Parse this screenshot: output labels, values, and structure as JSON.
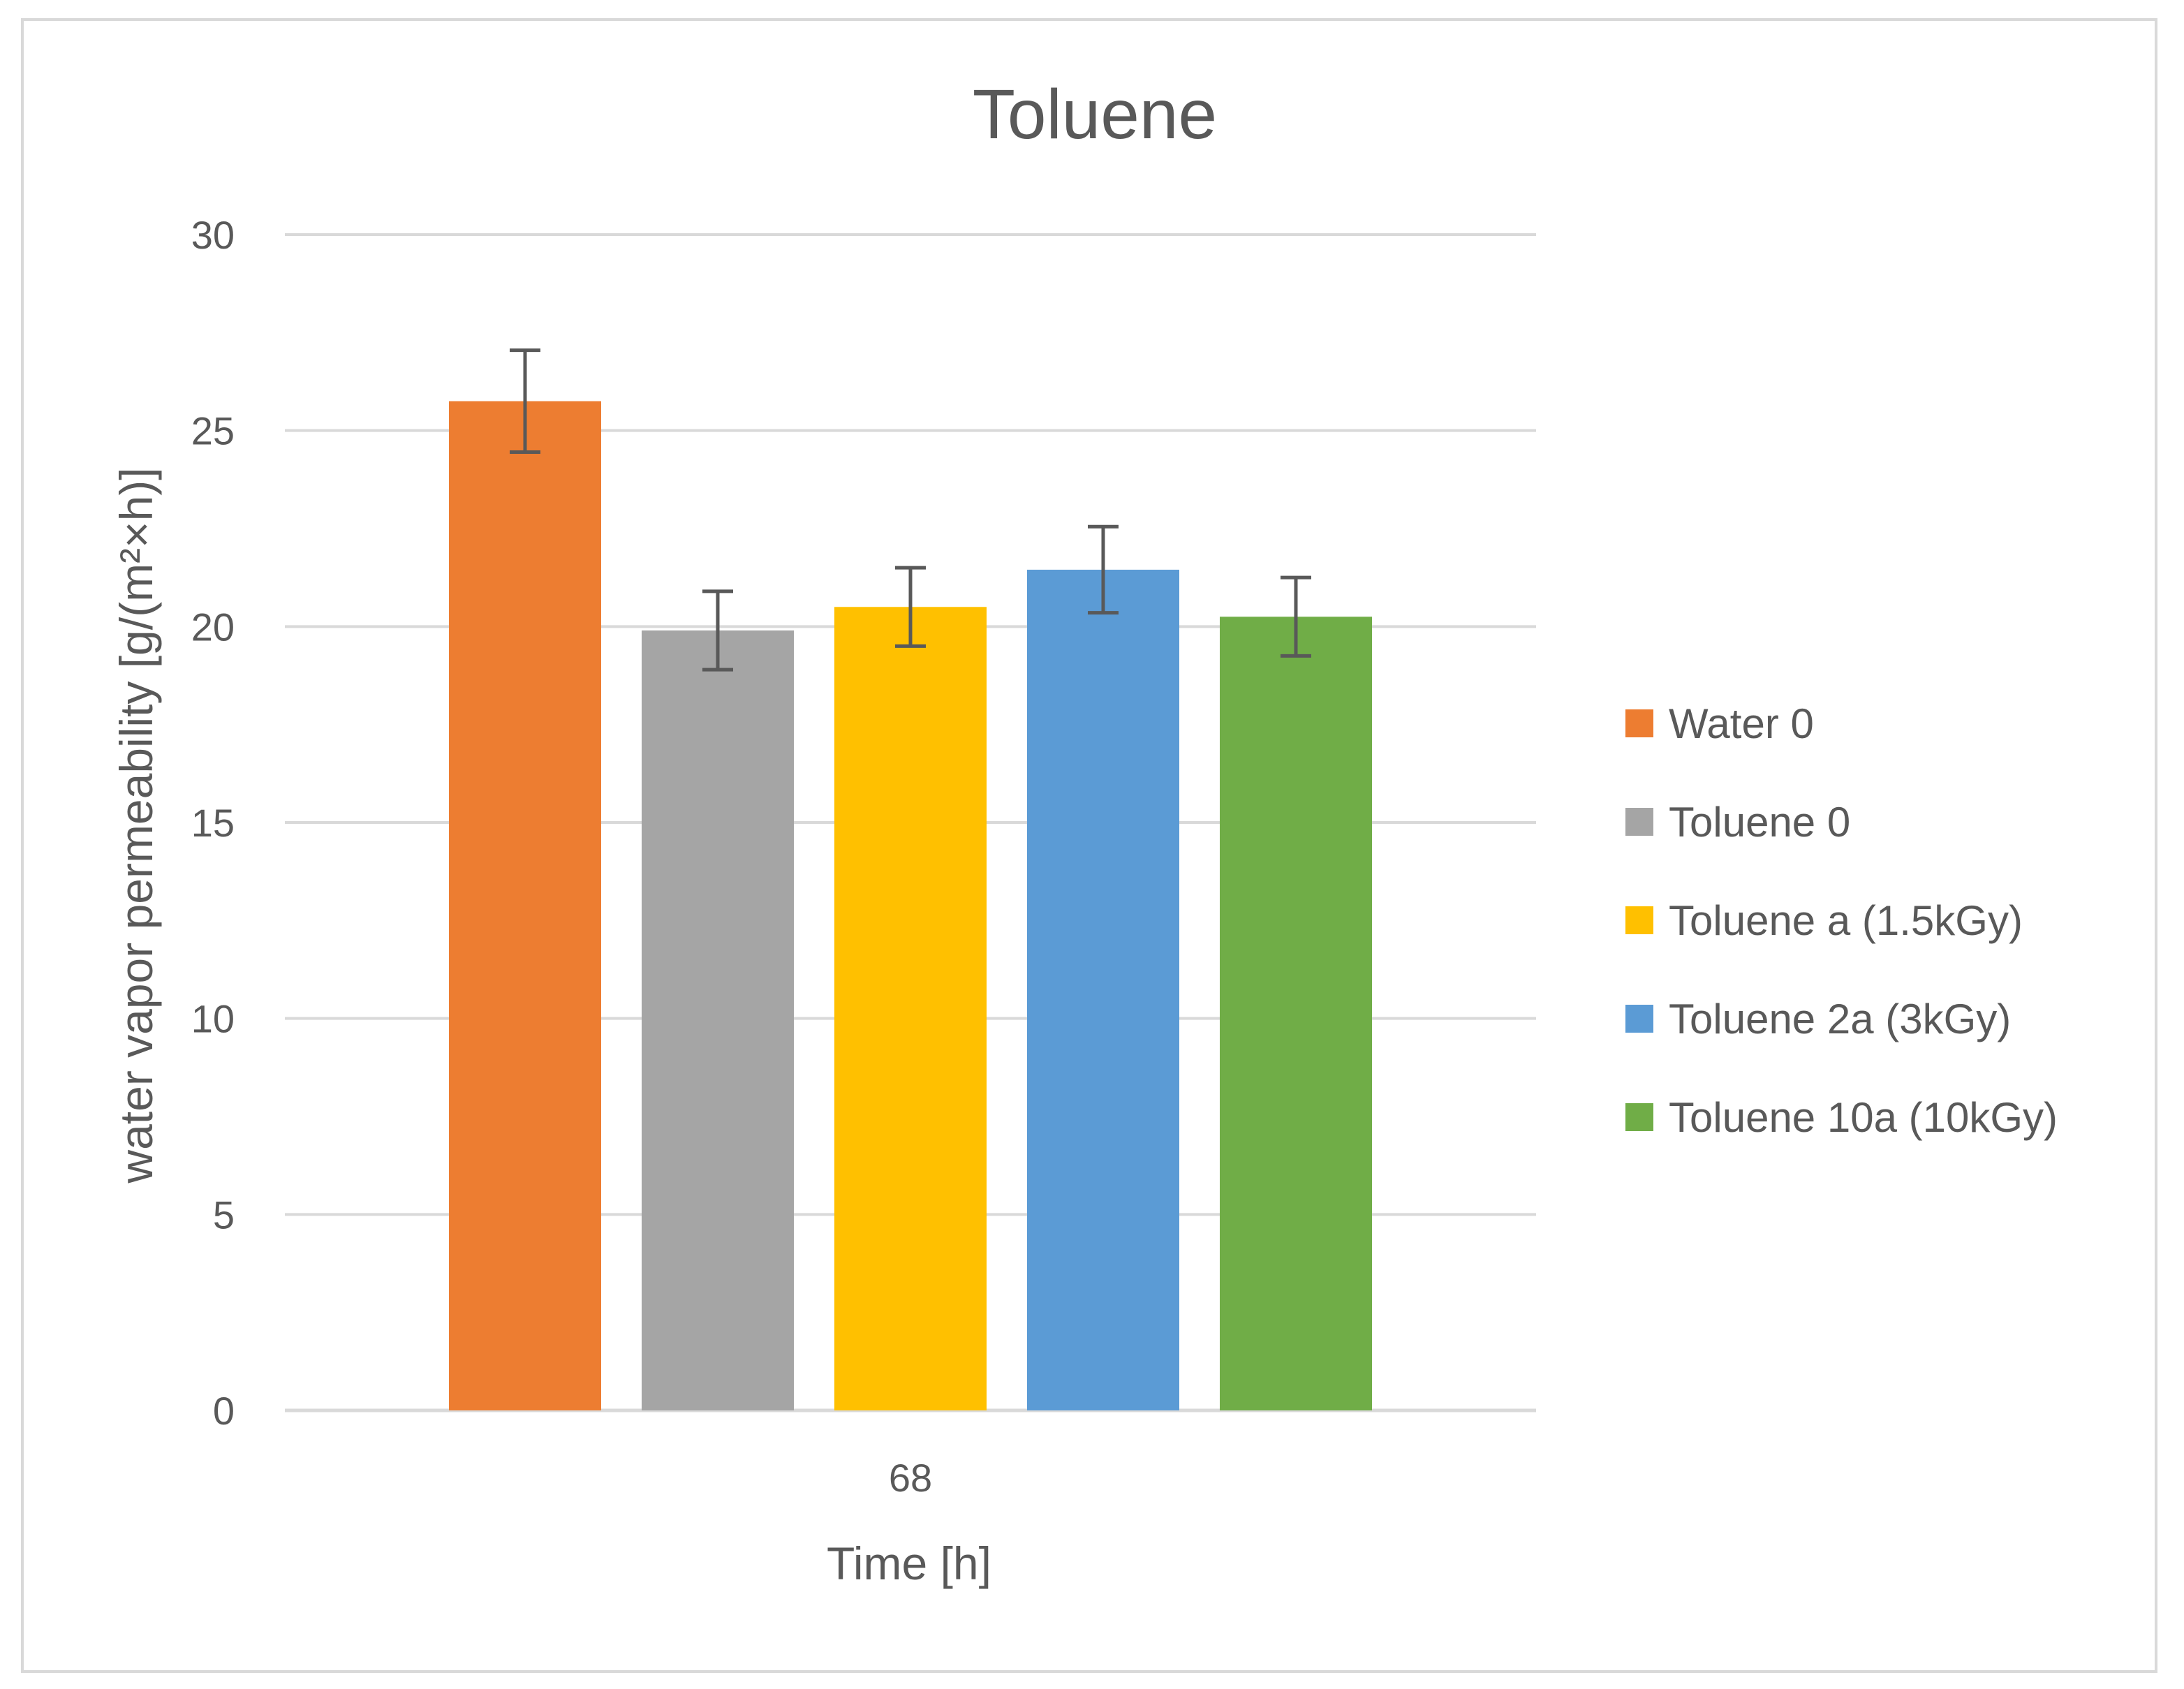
{
  "chart_data": {
    "type": "bar",
    "title": "Toluene",
    "xlabel": "Time [h]",
    "ylabel": "water vapor permeability [g/(m²×h)]",
    "categories": [
      "68"
    ],
    "ylim": [
      0,
      30
    ],
    "yticks": [
      0,
      5,
      10,
      15,
      20,
      25,
      30
    ],
    "grid": true,
    "legend_position": "right",
    "series": [
      {
        "name": "Water 0",
        "values": [
          25.75
        ],
        "error": [
          1.3
        ],
        "color": "#ED7D31"
      },
      {
        "name": "Toluene 0",
        "values": [
          19.9
        ],
        "error": [
          1.0
        ],
        "color": "#A5A5A5"
      },
      {
        "name": "Toluene a (1.5kGy)",
        "values": [
          20.5
        ],
        "error": [
          1.0
        ],
        "color": "#FFC000"
      },
      {
        "name": "Toluene 2a (3kGy)",
        "values": [
          21.45
        ],
        "error": [
          1.1
        ],
        "color": "#5B9BD5"
      },
      {
        "name": "Toluene 10a (10kGy)",
        "values": [
          20.25
        ],
        "error": [
          1.0
        ],
        "color": "#70AD47"
      }
    ]
  }
}
